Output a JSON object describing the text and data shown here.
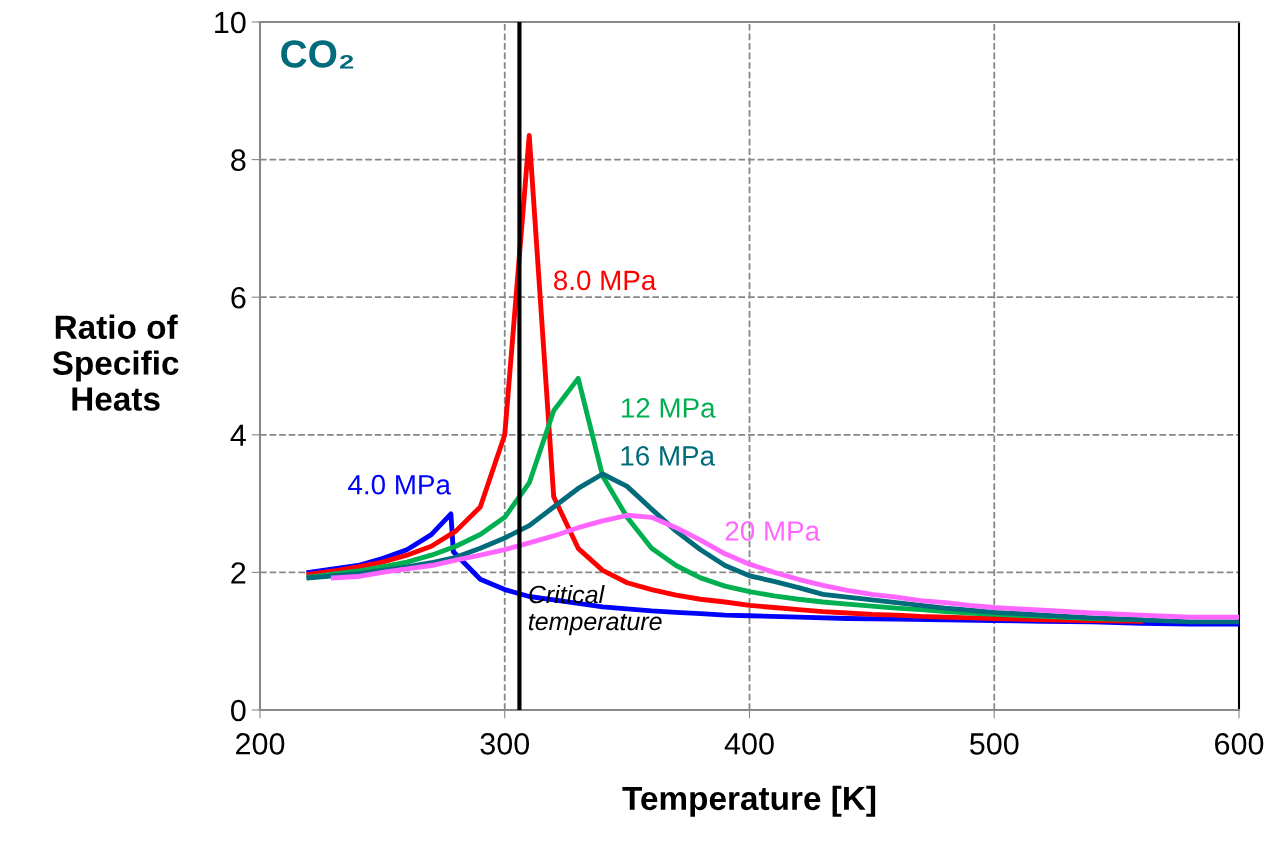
{
  "chart_data": {
    "type": "line",
    "title": "CO₂",
    "xlabel": "Temperature [K]",
    "ylabel": "Ratio of\nSpecific\nHeats",
    "xlim": [
      200,
      600
    ],
    "xticks": [
      200,
      300,
      400,
      500,
      600
    ],
    "ylim": [
      0,
      10
    ],
    "yticks": [
      0,
      2,
      4,
      6,
      8,
      10
    ],
    "grid": true,
    "legend": false,
    "marker": "none",
    "line_style": "solid",
    "ref_lines": [
      {
        "axis": "x",
        "value": 306,
        "label": "Critical\ntemperature",
        "color": "#000000",
        "line_style": "solid"
      }
    ],
    "series": [
      {
        "name": "4.0 MPa",
        "color": "#0000ff",
        "x": [
          220,
          230,
          240,
          250,
          260,
          270,
          278,
          279,
          290,
          300,
          310,
          320,
          330,
          340,
          350,
          360,
          370,
          380,
          390,
          400,
          420,
          440,
          460,
          480,
          500,
          520,
          540,
          560,
          580,
          600
        ],
        "values": [
          2.0,
          2.05,
          2.1,
          2.2,
          2.33,
          2.55,
          2.85,
          2.3,
          1.9,
          1.75,
          1.65,
          1.6,
          1.55,
          1.5,
          1.47,
          1.44,
          1.42,
          1.4,
          1.38,
          1.37,
          1.35,
          1.33,
          1.32,
          1.31,
          1.3,
          1.29,
          1.28,
          1.26,
          1.25,
          1.25
        ]
      },
      {
        "name": "8.0 MPa",
        "color": "#ff0000",
        "x": [
          220,
          230,
          240,
          250,
          260,
          270,
          280,
          290,
          300,
          310,
          320,
          330,
          340,
          350,
          360,
          370,
          380,
          390,
          400,
          410,
          420,
          430,
          440,
          450,
          460,
          470,
          480,
          490,
          500,
          520,
          540,
          560
        ],
        "values": [
          1.97,
          2.02,
          2.08,
          2.15,
          2.25,
          2.38,
          2.6,
          2.95,
          4.0,
          8.35,
          3.1,
          2.35,
          2.03,
          1.85,
          1.75,
          1.67,
          1.61,
          1.57,
          1.52,
          1.49,
          1.46,
          1.43,
          1.41,
          1.39,
          1.38,
          1.36,
          1.35,
          1.34,
          1.33,
          1.31,
          1.3,
          1.29
        ]
      },
      {
        "name": "12 MPa",
        "color": "#00b050",
        "x": [
          220,
          240,
          250,
          260,
          270,
          280,
          290,
          300,
          310,
          320,
          330,
          340,
          350,
          360,
          370,
          380,
          390,
          400,
          410,
          420,
          430,
          440,
          450,
          460,
          470,
          480,
          490,
          500,
          520,
          540,
          560
        ],
        "values": [
          1.93,
          2.02,
          2.08,
          2.15,
          2.25,
          2.38,
          2.55,
          2.8,
          3.3,
          4.35,
          4.82,
          3.4,
          2.8,
          2.35,
          2.1,
          1.92,
          1.8,
          1.72,
          1.66,
          1.61,
          1.57,
          1.54,
          1.51,
          1.48,
          1.46,
          1.43,
          1.41,
          1.39,
          1.36,
          1.33,
          1.31
        ]
      },
      {
        "name": "16 MPa",
        "color": "#006b7a",
        "x": [
          220,
          240,
          250,
          260,
          270,
          280,
          290,
          300,
          310,
          320,
          330,
          340,
          350,
          360,
          370,
          380,
          390,
          400,
          410,
          420,
          430,
          440,
          450,
          460,
          470,
          480,
          490,
          500,
          520,
          540,
          560,
          580,
          600
        ],
        "values": [
          1.92,
          1.98,
          2.03,
          2.08,
          2.14,
          2.22,
          2.35,
          2.5,
          2.68,
          2.95,
          3.22,
          3.43,
          3.25,
          2.92,
          2.6,
          2.33,
          2.1,
          1.95,
          1.87,
          1.78,
          1.68,
          1.64,
          1.6,
          1.56,
          1.52,
          1.48,
          1.45,
          1.42,
          1.38,
          1.34,
          1.31,
          1.28,
          1.28
        ]
      },
      {
        "name": "20 MPa",
        "color": "#ff66ff",
        "x": [
          230,
          240,
          250,
          260,
          270,
          280,
          290,
          300,
          310,
          320,
          330,
          340,
          350,
          360,
          370,
          380,
          390,
          400,
          410,
          420,
          430,
          440,
          450,
          460,
          470,
          480,
          490,
          500,
          520,
          540,
          560,
          580,
          600
        ],
        "values": [
          1.92,
          1.94,
          2.0,
          2.05,
          2.1,
          2.18,
          2.25,
          2.33,
          2.43,
          2.53,
          2.65,
          2.75,
          2.83,
          2.8,
          2.65,
          2.47,
          2.27,
          2.12,
          2.0,
          1.9,
          1.81,
          1.74,
          1.68,
          1.64,
          1.59,
          1.56,
          1.52,
          1.49,
          1.45,
          1.41,
          1.38,
          1.35,
          1.35
        ]
      }
    ]
  }
}
